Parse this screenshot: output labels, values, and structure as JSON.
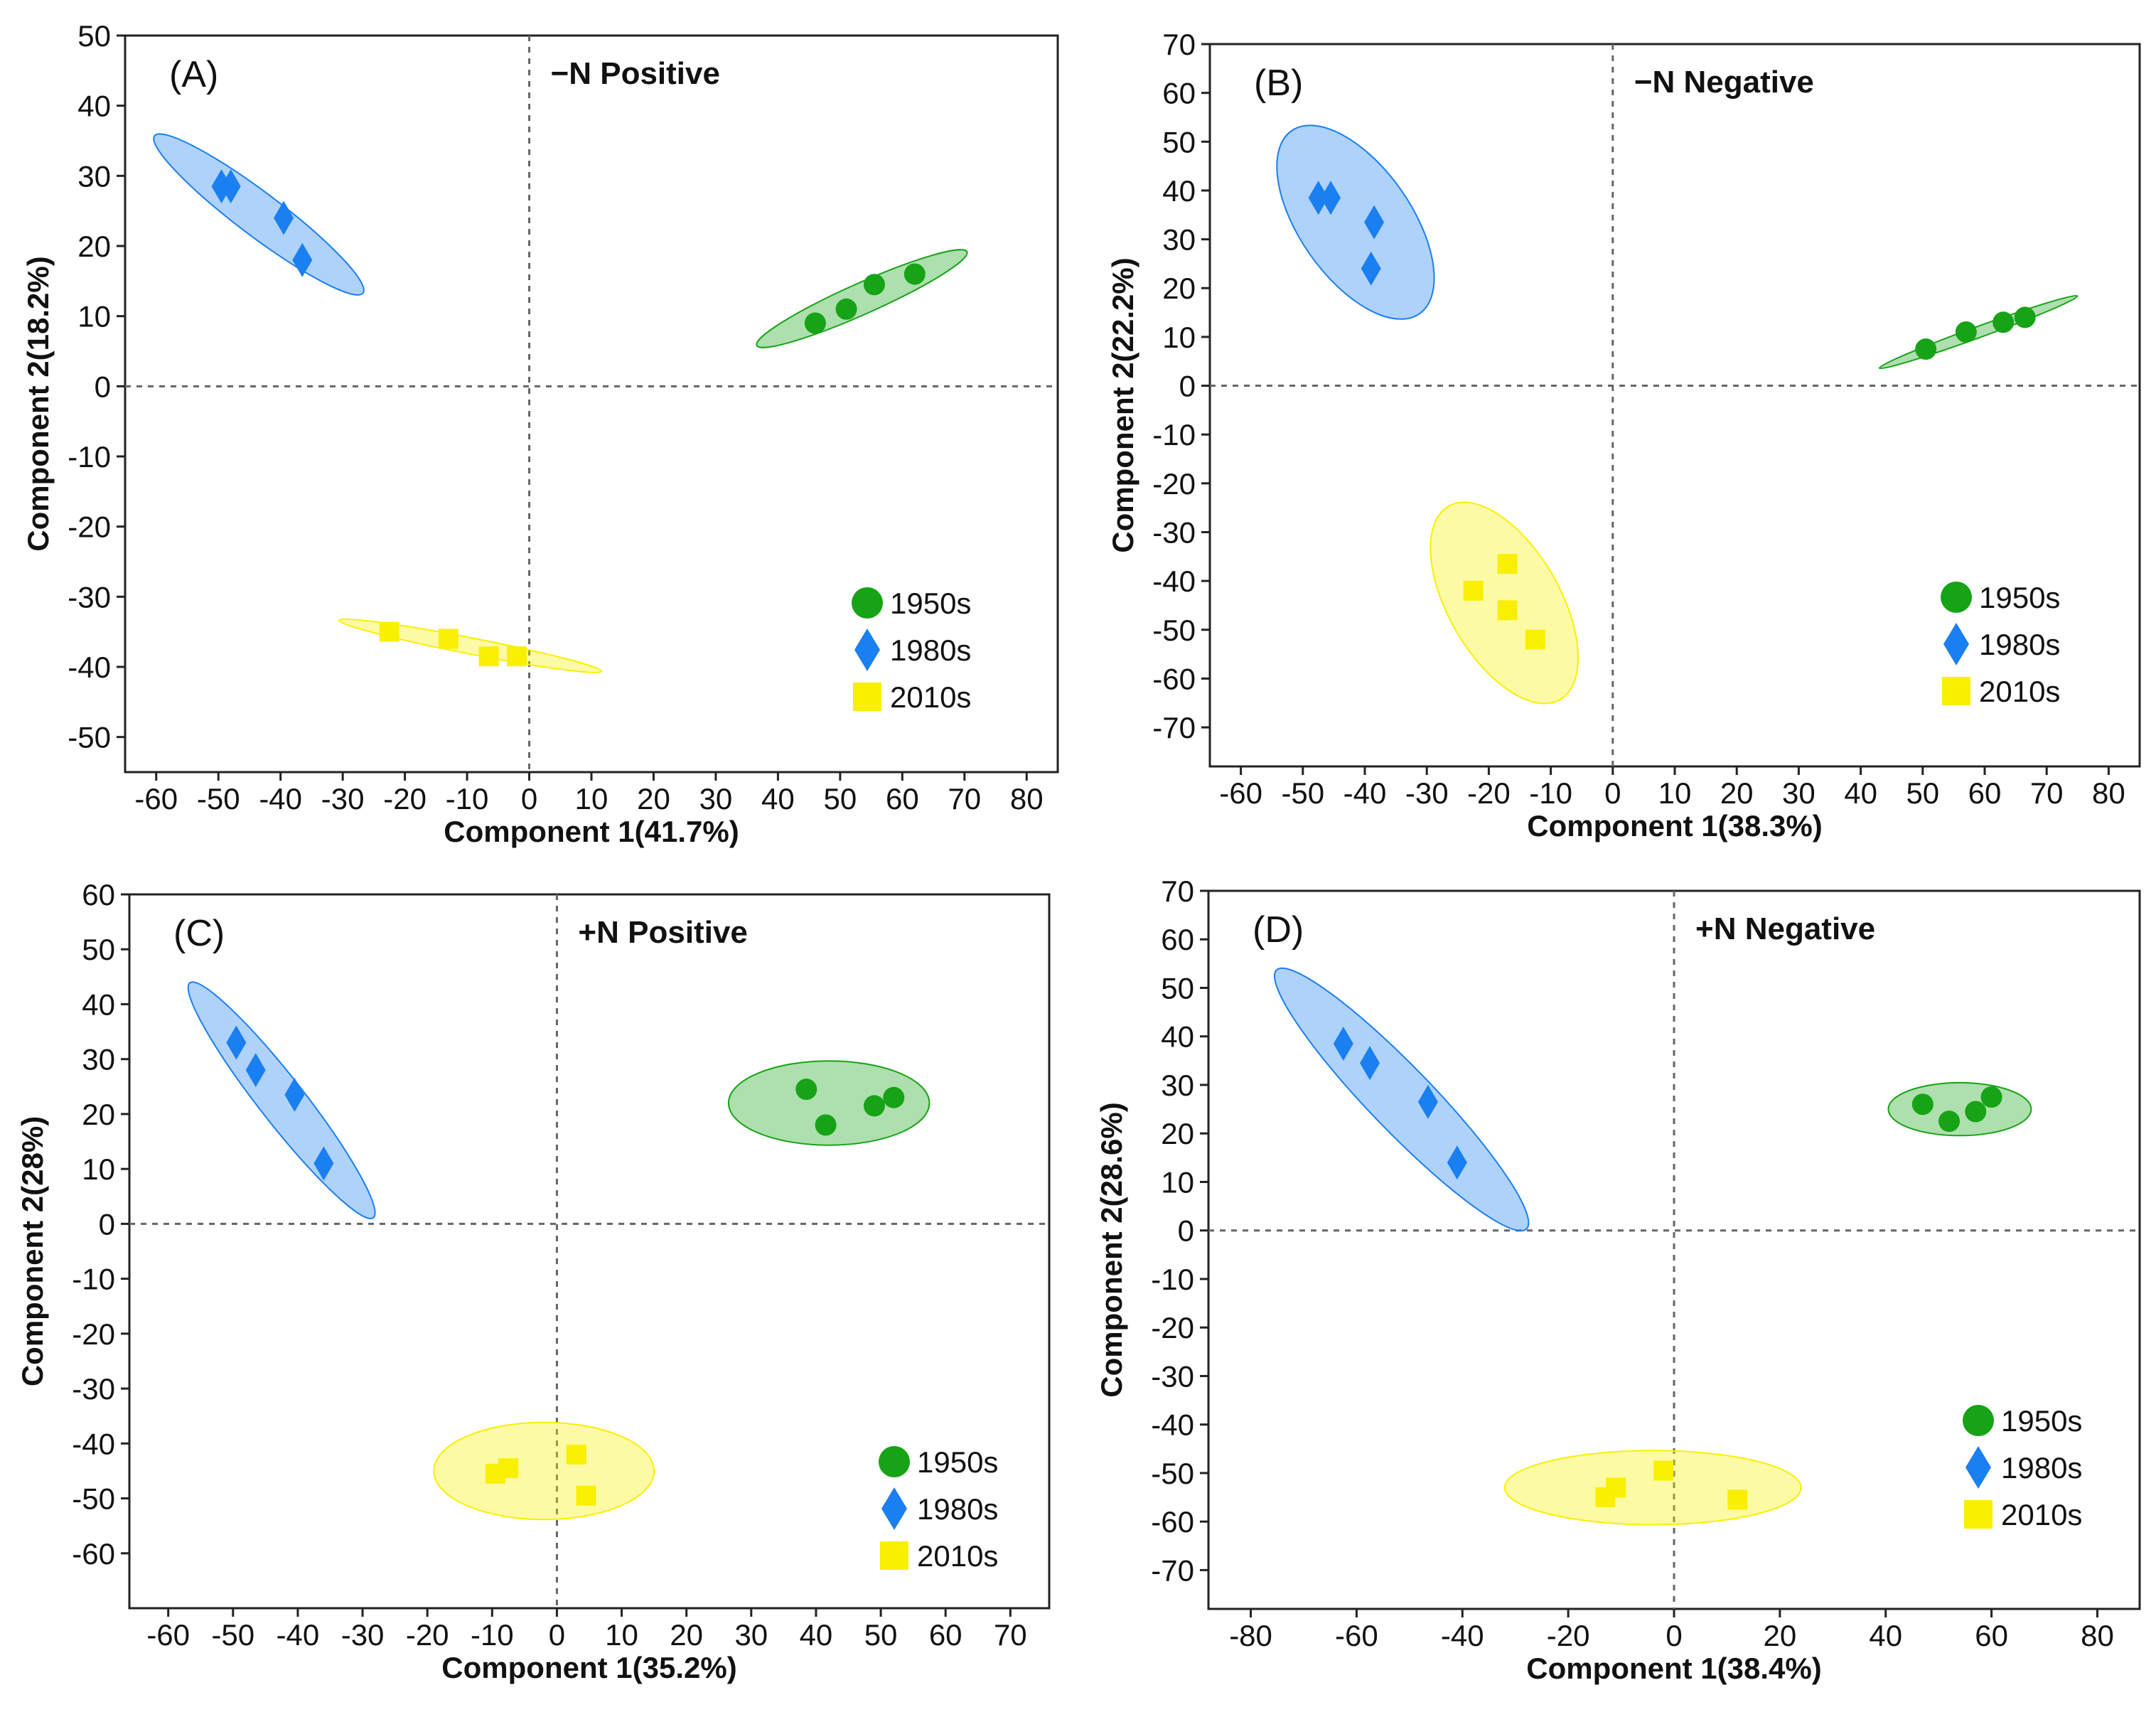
{
  "colors": {
    "1950s": "#16a316",
    "1980s": "#1a7ff0",
    "2010s": "#f8f000"
  },
  "chart_data": [
    {
      "type": "scatter",
      "panel_label": "(A)",
      "title": "−N Positive",
      "xlabel": "Component 1(41.7%)",
      "ylabel": "Component 2(18.2%)",
      "xlim": [
        -65,
        85
      ],
      "ylim": [
        -55,
        50
      ],
      "xticks": [
        -60,
        -50,
        -40,
        -30,
        -20,
        -10,
        0,
        10,
        20,
        30,
        40,
        50,
        60,
        70,
        80
      ],
      "yticks": [
        50,
        40,
        30,
        20,
        10,
        0,
        -10,
        -20,
        -30,
        -40,
        -50
      ],
      "legend_position": "bottom-right",
      "series": [
        {
          "name": "1950s",
          "marker": "circle",
          "points": [
            [
              46,
              9
            ],
            [
              51,
              11
            ],
            [
              55.5,
              14.5
            ],
            [
              62,
              16
            ]
          ],
          "ellipse": {
            "cx": 53.5,
            "cy": 12.5,
            "rx": 18.5,
            "ry": 2.5,
            "angle_deg": -24
          }
        },
        {
          "name": "1980s",
          "marker": "diamond",
          "points": [
            [
              -49.5,
              28.5
            ],
            [
              -48,
              28.5
            ],
            [
              -39.5,
              24
            ],
            [
              -36.5,
              18
            ]
          ],
          "ellipse": {
            "cx": -43.5,
            "cy": 24.5,
            "rx": 21,
            "ry": 3.5,
            "angle_deg": 37
          }
        },
        {
          "name": "2010s",
          "marker": "square",
          "points": [
            [
              -22.5,
              -35
            ],
            [
              -13,
              -36
            ],
            [
              -6.5,
              -38.5
            ],
            [
              -2,
              -38.5
            ]
          ],
          "ellipse": {
            "cx": -9.5,
            "cy": -37,
            "rx": 21.5,
            "ry": 1.3,
            "angle_deg": 11
          }
        }
      ]
    },
    {
      "type": "scatter",
      "panel_label": "(B)",
      "title": "−N Negative",
      "xlabel": "Component 1(38.3%)",
      "ylabel": "Component 2(22.2%)",
      "xlim": [
        -65,
        85
      ],
      "ylim": [
        -78,
        70
      ],
      "xticks": [
        -60,
        -50,
        -40,
        -30,
        -20,
        -10,
        0,
        10,
        20,
        30,
        40,
        50,
        60,
        70,
        80
      ],
      "yticks": [
        70,
        60,
        50,
        40,
        30,
        20,
        10,
        0,
        -10,
        -20,
        -30,
        -40,
        -50,
        -60,
        -70
      ],
      "legend_position": "bottom-right",
      "series": [
        {
          "name": "1950s",
          "marker": "circle",
          "points": [
            [
              50.5,
              7.5
            ],
            [
              57,
              11
            ],
            [
              63,
              13
            ],
            [
              66.5,
              14
            ]
          ],
          "ellipse": {
            "cx": 59,
            "cy": 11,
            "rx": 17,
            "ry": 0.9,
            "angle_deg": -20
          }
        },
        {
          "name": "1980s",
          "marker": "diamond",
          "points": [
            [
              -47.5,
              38.5
            ],
            [
              -45.5,
              38.5
            ],
            [
              -38.5,
              33.5
            ],
            [
              -39,
              24
            ]
          ],
          "ellipse": {
            "cx": -41.5,
            "cy": 33.5,
            "rx": 18,
            "ry": 9,
            "angle_deg": 55
          }
        },
        {
          "name": "2010s",
          "marker": "square",
          "points": [
            [
              -22.5,
              -42
            ],
            [
              -17,
              -36.5
            ],
            [
              -17,
              -46
            ],
            [
              -12.5,
              -52
            ]
          ],
          "ellipse": {
            "cx": -17.5,
            "cy": -44.5,
            "rx": 18,
            "ry": 9,
            "angle_deg": 60
          }
        }
      ]
    },
    {
      "type": "scatter",
      "panel_label": "(C)",
      "title": "+N Positive",
      "xlabel": "Component 1(35.2%)",
      "ylabel": "Component 2(28%)",
      "xlim": [
        -66,
        76
      ],
      "ylim": [
        -70,
        60
      ],
      "xticks": [
        -60,
        -50,
        -40,
        -30,
        -20,
        -10,
        0,
        10,
        20,
        30,
        40,
        50,
        60,
        70
      ],
      "yticks": [
        60,
        50,
        40,
        30,
        20,
        10,
        0,
        -10,
        -20,
        -30,
        -40,
        -50,
        -60
      ],
      "legend_position": "bottom-right",
      "series": [
        {
          "name": "1950s",
          "marker": "circle",
          "points": [
            [
              38.5,
              24.5
            ],
            [
              41.5,
              18
            ],
            [
              49,
              21.5
            ],
            [
              52,
              23
            ]
          ],
          "ellipse": {
            "cx": 42,
            "cy": 22,
            "rx": 15.5,
            "ry": 6.5,
            "angle_deg": 0
          }
        },
        {
          "name": "1980s",
          "marker": "diamond",
          "points": [
            [
              -49.5,
              33
            ],
            [
              -46.5,
              28
            ],
            [
              -40.5,
              23.5
            ],
            [
              -36,
              11
            ]
          ],
          "ellipse": {
            "cx": -42.5,
            "cy": 22.5,
            "rx": 23,
            "ry": 3.5,
            "angle_deg": 52
          }
        },
        {
          "name": "2010s",
          "marker": "square",
          "points": [
            [
              -9.5,
              -45.5
            ],
            [
              -7.5,
              -44.5
            ],
            [
              3,
              -42
            ],
            [
              4.5,
              -49.5
            ]
          ],
          "ellipse": {
            "cx": -2,
            "cy": -45,
            "rx": 17,
            "ry": 7.5,
            "angle_deg": 0
          }
        }
      ]
    },
    {
      "type": "scatter",
      "panel_label": "(D)",
      "title": "+N Negative",
      "xlabel": "Component 1(38.4%)",
      "ylabel": "Component 2(28.6%)",
      "xlim": [
        -88,
        88
      ],
      "ylim": [
        -78,
        70
      ],
      "xticks": [
        -80,
        -60,
        -40,
        -20,
        0,
        20,
        40,
        60,
        80
      ],
      "yticks": [
        70,
        60,
        50,
        40,
        30,
        20,
        10,
        0,
        -10,
        -20,
        -30,
        -40,
        -50,
        -60,
        -70
      ],
      "legend_position": "bottom-right",
      "series": [
        {
          "name": "1950s",
          "marker": "circle",
          "points": [
            [
              47,
              26
            ],
            [
              52,
              22.5
            ],
            [
              57,
              24.5
            ],
            [
              60,
              27.5
            ]
          ],
          "ellipse": {
            "cx": 54,
            "cy": 25,
            "rx": 13.5,
            "ry": 5,
            "angle_deg": 0
          }
        },
        {
          "name": "1980s",
          "marker": "diamond",
          "points": [
            [
              -62.5,
              38.5
            ],
            [
              -57.5,
              34.5
            ],
            [
              -46.5,
              26.5
            ],
            [
              -41,
              14
            ]
          ],
          "ellipse": {
            "cx": -51.5,
            "cy": 27,
            "rx": 34,
            "ry": 6,
            "angle_deg": 46
          }
        },
        {
          "name": "2010s",
          "marker": "square",
          "points": [
            [
              -13,
              -55
            ],
            [
              -11,
              -53
            ],
            [
              -2,
              -49.5
            ],
            [
              12,
              -55.5
            ]
          ],
          "ellipse": {
            "cx": -4,
            "cy": -53,
            "rx": 28,
            "ry": 7,
            "angle_deg": 0
          }
        }
      ]
    }
  ]
}
